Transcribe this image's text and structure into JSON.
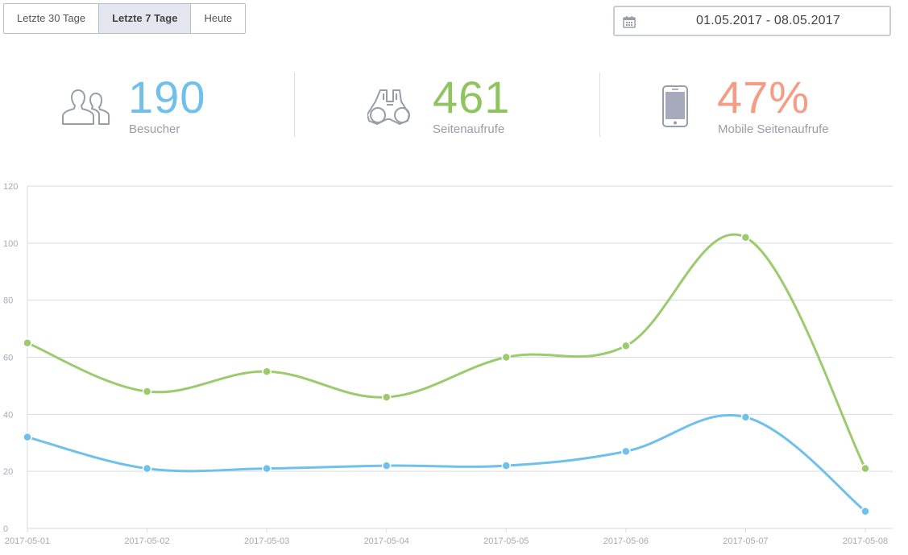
{
  "range_buttons": [
    {
      "label": "Letzte 30 Tage",
      "active": false
    },
    {
      "label": "Letzte 7 Tage",
      "active": true
    },
    {
      "label": "Heute",
      "active": false
    }
  ],
  "date_range": "01.05.2017 - 08.05.2017",
  "kpis": [
    {
      "value": "190",
      "label": "Besucher",
      "color": "#71c0ea",
      "icon": "users-icon"
    },
    {
      "value": "461",
      "label": "Seitenaufrufe",
      "color": "#8fc460",
      "icon": "binoculars-icon"
    },
    {
      "value": "47%",
      "label": "Mobile Seitenaufrufe",
      "color": "#f49c86",
      "icon": "mobile-phone-icon"
    }
  ],
  "chart_data": {
    "type": "line",
    "categories": [
      "2017-05-01",
      "2017-05-02",
      "2017-05-03",
      "2017-05-04",
      "2017-05-05",
      "2017-05-06",
      "2017-05-07",
      "2017-05-08"
    ],
    "y_ticks": [
      "0",
      "20",
      "40",
      "60",
      "80",
      "100",
      "120"
    ],
    "ylim": [
      0,
      120
    ],
    "grid": true,
    "series": [
      {
        "color": "#9ccb6e",
        "values": [
          65,
          48,
          55,
          46,
          60,
          64,
          102,
          21
        ]
      },
      {
        "color": "#6fc0ea",
        "values": [
          32,
          21,
          21,
          22,
          22,
          27,
          39,
          6
        ]
      }
    ]
  }
}
